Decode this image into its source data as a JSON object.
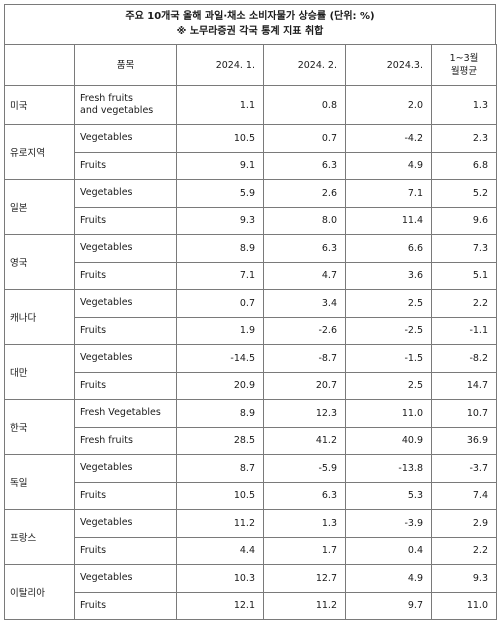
{
  "title": "주요 10개국 올해 과일·채소 소비자물가 상승률 (단위: %)",
  "source": "※ 노무라증권 각국 통계 지표 취합",
  "headers": {
    "item": "품목",
    "jan": "2024. 1.",
    "feb": "2024. 2.",
    "mar": "2024.3.",
    "avg_line1": "1~3월",
    "avg_line2": "월평균"
  },
  "rows": [
    {
      "country": "미국",
      "items": [
        {
          "name": "Fresh fruits and vegetables",
          "name1": "Fresh fruits",
          "name2": "and vegetables",
          "jan": "1.1",
          "feb": "0.8",
          "mar": "2.0",
          "avg": "1.3"
        }
      ]
    },
    {
      "country": "유로지역",
      "items": [
        {
          "name": "Vegetables",
          "jan": "10.5",
          "feb": "0.7",
          "mar": "-4.2",
          "avg": "2.3"
        },
        {
          "name": "Fruits",
          "jan": "9.1",
          "feb": "6.3",
          "mar": "4.9",
          "avg": "6.8"
        }
      ]
    },
    {
      "country": "일본",
      "items": [
        {
          "name": "Vegetables",
          "jan": "5.9",
          "feb": "2.6",
          "mar": "7.1",
          "avg": "5.2"
        },
        {
          "name": "Fruits",
          "jan": "9.3",
          "feb": "8.0",
          "mar": "11.4",
          "avg": "9.6"
        }
      ]
    },
    {
      "country": "영국",
      "items": [
        {
          "name": "Vegetables",
          "jan": "8.9",
          "feb": "6.3",
          "mar": "6.6",
          "avg": "7.3"
        },
        {
          "name": "Fruits",
          "jan": "7.1",
          "feb": "4.7",
          "mar": "3.6",
          "avg": "5.1"
        }
      ]
    },
    {
      "country": "캐나다",
      "items": [
        {
          "name": "Vegetables",
          "jan": "0.7",
          "feb": "3.4",
          "mar": "2.5",
          "avg": "2.2"
        },
        {
          "name": "Fruits",
          "jan": "1.9",
          "feb": "-2.6",
          "mar": "-2.5",
          "avg": "-1.1"
        }
      ]
    },
    {
      "country": "대만",
      "items": [
        {
          "name": "Vegetables",
          "jan": "-14.5",
          "feb": "-8.7",
          "mar": "-1.5",
          "avg": "-8.2"
        },
        {
          "name": "Fruits",
          "jan": "20.9",
          "feb": "20.7",
          "mar": "2.5",
          "avg": "14.7"
        }
      ]
    },
    {
      "country": "한국",
      "items": [
        {
          "name": "Fresh Vegetables",
          "jan": "8.9",
          "feb": "12.3",
          "mar": "11.0",
          "avg": "10.7"
        },
        {
          "name": "Fresh fruits",
          "jan": "28.5",
          "feb": "41.2",
          "mar": "40.9",
          "avg": "36.9"
        }
      ]
    },
    {
      "country": "독일",
      "items": [
        {
          "name": "Vegetables",
          "jan": "8.7",
          "feb": "-5.9",
          "mar": "-13.8",
          "avg": "-3.7"
        },
        {
          "name": "Fruits",
          "jan": "10.5",
          "feb": "6.3",
          "mar": "5.3",
          "avg": "7.4"
        }
      ]
    },
    {
      "country": "프랑스",
      "items": [
        {
          "name": "Vegetables",
          "jan": "11.2",
          "feb": "1.3",
          "mar": "-3.9",
          "avg": "2.9"
        },
        {
          "name": "Fruits",
          "jan": "4.4",
          "feb": "1.7",
          "mar": "0.4",
          "avg": "2.2"
        }
      ]
    },
    {
      "country": "이탈리아",
      "items": [
        {
          "name": "Vegetables",
          "jan": "10.3",
          "feb": "12.7",
          "mar": "4.9",
          "avg": "9.3"
        },
        {
          "name": "Fruits",
          "jan": "12.1",
          "feb": "11.2",
          "mar": "9.7",
          "avg": "11.0"
        }
      ]
    }
  ]
}
